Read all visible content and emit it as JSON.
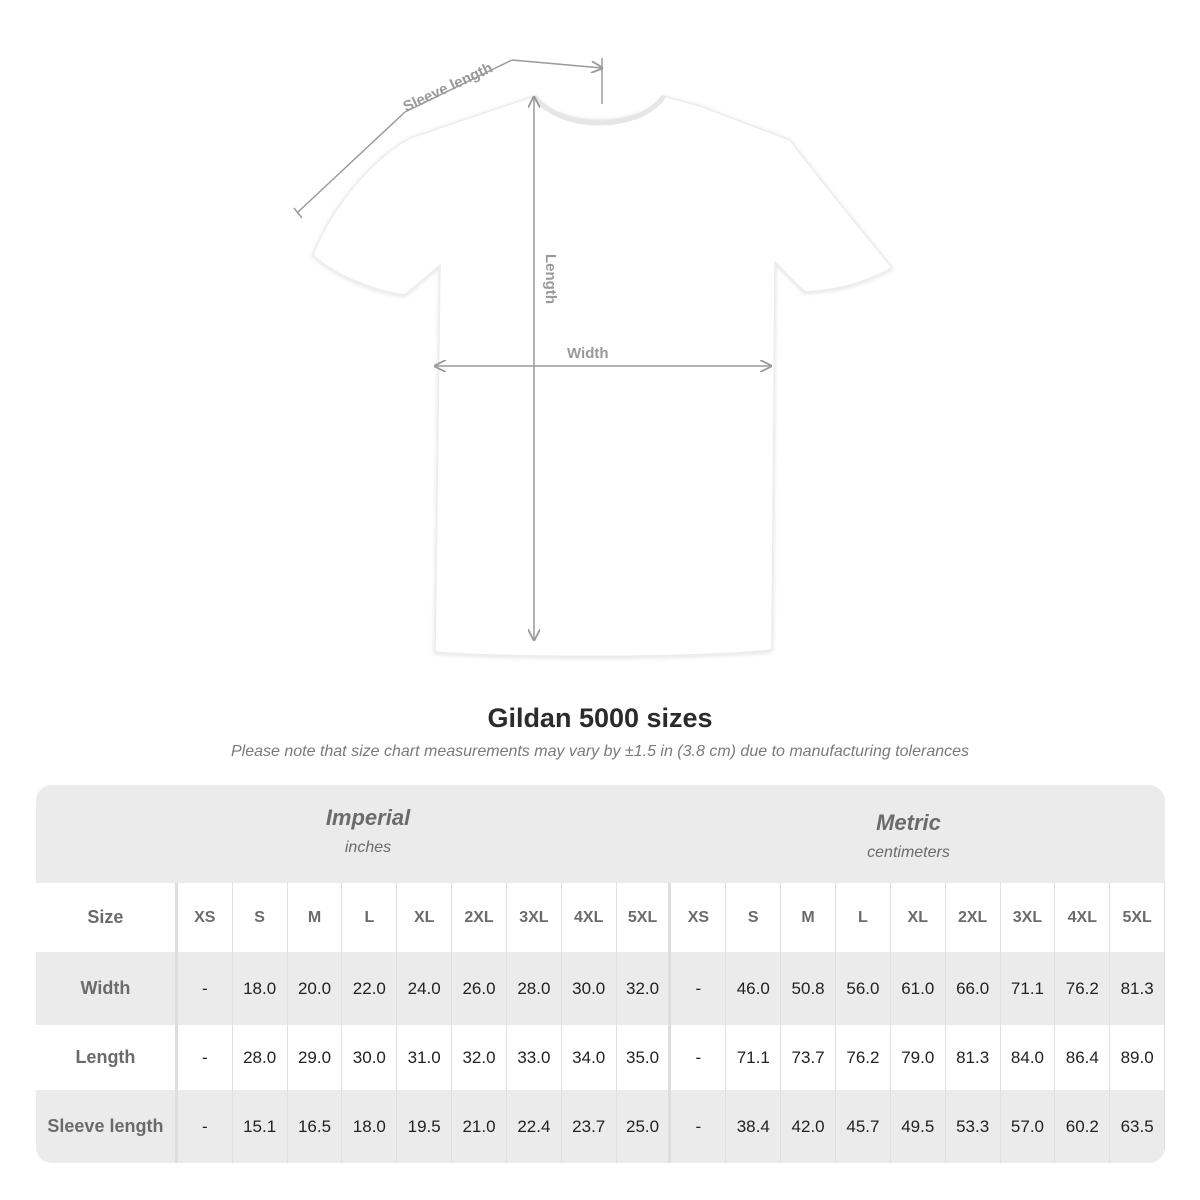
{
  "diagram": {
    "labels": {
      "sleeve": "Sleeve length",
      "length": "Length",
      "width": "Width"
    },
    "colors": {
      "shirt": "#ffffff",
      "measure_lines": "#9a9a9a"
    }
  },
  "title": "Gildan 5000 sizes",
  "note": "Please note that size chart measurements may vary by ±1.5 in (3.8 cm) due to manufacturing tolerances",
  "table": {
    "imperial": {
      "name": "Imperial",
      "unit": "inches"
    },
    "metric": {
      "name": "Metric",
      "unit": "centimeters"
    },
    "size_label": "Size",
    "sizes": [
      "XS",
      "S",
      "M",
      "L",
      "XL",
      "2XL",
      "3XL",
      "4XL",
      "5XL"
    ],
    "rows": [
      {
        "label": "Width",
        "imperial": [
          "-",
          "18.0",
          "20.0",
          "22.0",
          "24.0",
          "26.0",
          "28.0",
          "30.0",
          "32.0"
        ],
        "metric": [
          "-",
          "46.0",
          "50.8",
          "56.0",
          "61.0",
          "66.0",
          "71.1",
          "76.2",
          "81.3"
        ]
      },
      {
        "label": "Length",
        "imperial": [
          "-",
          "28.0",
          "29.0",
          "30.0",
          "31.0",
          "32.0",
          "33.0",
          "34.0",
          "35.0"
        ],
        "metric": [
          "-",
          "71.1",
          "73.7",
          "76.2",
          "79.0",
          "81.3",
          "84.0",
          "86.4",
          "89.0"
        ]
      },
      {
        "label": "Sleeve length",
        "imperial": [
          "-",
          "15.1",
          "16.5",
          "18.0",
          "19.5",
          "21.0",
          "22.4",
          "23.7",
          "25.0"
        ],
        "metric": [
          "-",
          "38.4",
          "42.0",
          "45.7",
          "49.5",
          "53.3",
          "57.0",
          "60.2",
          "63.5"
        ]
      }
    ]
  }
}
